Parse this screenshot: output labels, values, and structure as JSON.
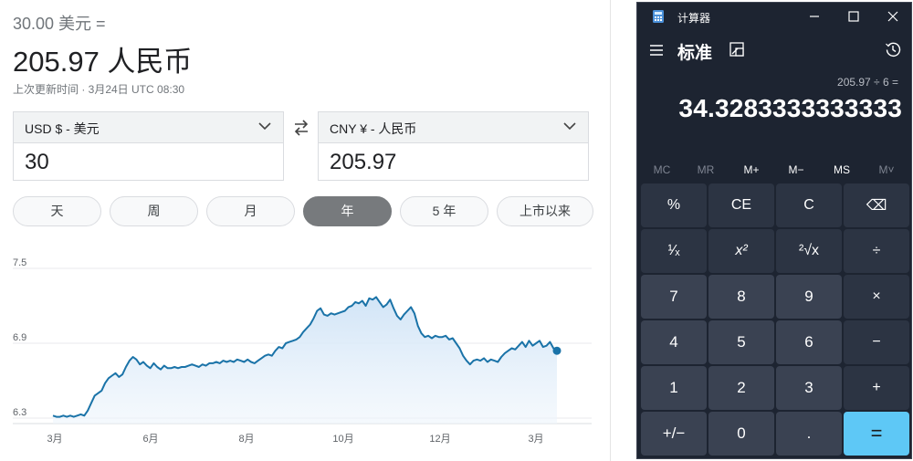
{
  "converter": {
    "subtitle": "30.00 美元 =",
    "result": "205.97 人民币",
    "updated": "上次更新时间 · 3月24日 UTC 08:30",
    "from": {
      "currency": "USD $ - 美元",
      "value": "30"
    },
    "to": {
      "currency": "CNY ¥ - 人民币",
      "value": "205.97"
    },
    "ranges": [
      "天",
      "周",
      "月",
      "年",
      "5 年",
      "上市以来"
    ],
    "active_range": "年"
  },
  "chart_data": {
    "type": "area",
    "title": "",
    "xlabel": "",
    "ylabel": "",
    "ylim": [
      6.3,
      7.5
    ],
    "y_ticks": [
      "7.5",
      "6.9",
      "6.3"
    ],
    "x_ticks": [
      "3月",
      "6月",
      "8月",
      "10月",
      "12月",
      "3月"
    ],
    "grid": true,
    "line_color": "#1a73a8",
    "values": [
      6.32,
      6.31,
      6.31,
      6.32,
      6.31,
      6.32,
      6.31,
      6.32,
      6.33,
      6.32,
      6.36,
      6.42,
      6.48,
      6.5,
      6.52,
      6.58,
      6.62,
      6.64,
      6.66,
      6.63,
      6.65,
      6.71,
      6.76,
      6.79,
      6.77,
      6.73,
      6.75,
      6.72,
      6.7,
      6.74,
      6.71,
      6.69,
      6.72,
      6.7,
      6.7,
      6.71,
      6.7,
      6.71,
      6.71,
      6.72,
      6.73,
      6.72,
      6.71,
      6.73,
      6.72,
      6.74,
      6.74,
      6.75,
      6.74,
      6.76,
      6.75,
      6.76,
      6.75,
      6.77,
      6.76,
      6.75,
      6.77,
      6.75,
      6.74,
      6.76,
      6.78,
      6.8,
      6.81,
      6.8,
      6.84,
      6.87,
      6.86,
      6.9,
      6.91,
      6.92,
      6.93,
      6.95,
      6.99,
      7.02,
      7.05,
      7.1,
      7.16,
      7.18,
      7.13,
      7.12,
      7.14,
      7.13,
      7.14,
      7.15,
      7.16,
      7.19,
      7.2,
      7.23,
      7.22,
      7.24,
      7.2,
      7.26,
      7.25,
      7.27,
      7.23,
      7.19,
      7.21,
      7.25,
      7.18,
      7.12,
      7.09,
      7.13,
      7.16,
      7.19,
      7.14,
      7.04,
      6.98,
      6.95,
      6.96,
      6.94,
      6.96,
      6.95,
      6.95,
      6.96,
      6.93,
      6.94,
      6.9,
      6.86,
      6.8,
      6.76,
      6.73,
      6.76,
      6.77,
      6.76,
      6.78,
      6.75,
      6.77,
      6.76,
      6.75,
      6.79,
      6.82,
      6.84,
      6.86,
      6.85,
      6.88,
      6.91,
      6.87,
      6.92,
      6.88,
      6.9,
      6.92,
      6.87,
      6.88,
      6.91,
      6.86,
      6.84
    ]
  },
  "calculator": {
    "app_title": "计算器",
    "mode": "标准",
    "expression": "205.97 ÷ 6 =",
    "display": "34.3283333333333",
    "memory": [
      "MC",
      "MR",
      "M+",
      "M−",
      "MS",
      "M˅"
    ],
    "keys": [
      "%",
      "CE",
      "C",
      "⌫",
      "¹⁄ₓ",
      "x²",
      "²√x",
      "÷",
      "7",
      "8",
      "9",
      "×",
      "4",
      "5",
      "6",
      "−",
      "1",
      "2",
      "3",
      "+",
      "+/−",
      "0",
      ".",
      "="
    ]
  }
}
